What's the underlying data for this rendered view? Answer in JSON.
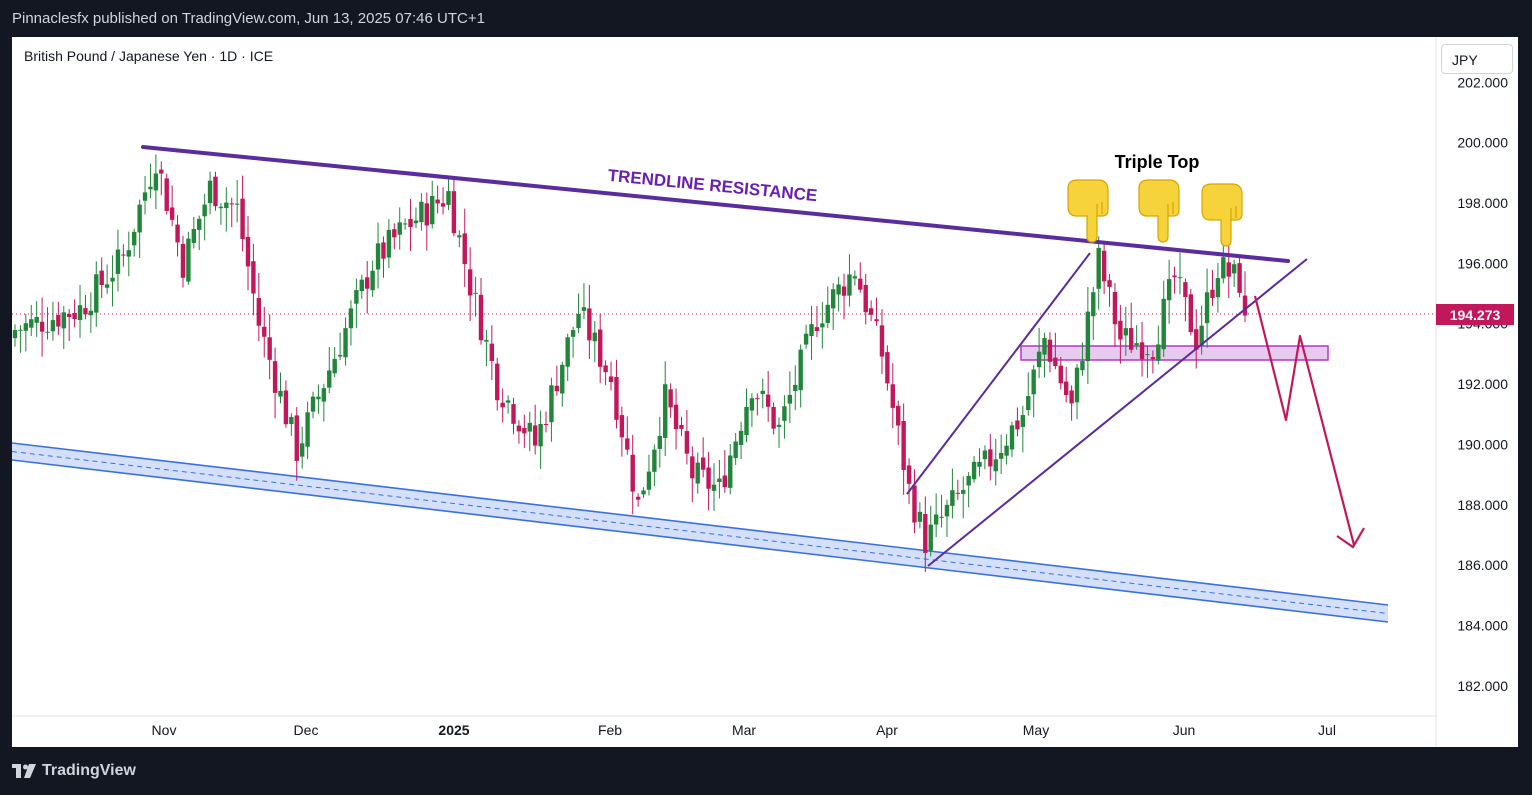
{
  "header": {
    "published": "Pinnaclesfx published on TradingView.com, Jun 13, 2025 07:46 UTC+1"
  },
  "symbol": "British Pound / Japanese Yen · 1D · ICE",
  "currency_button": "JPY",
  "footer": {
    "brand": "TradingView"
  },
  "colors": {
    "up": "#22863a",
    "down": "#c2185b",
    "trendline": "#5b2ba0",
    "channel": "#3a6fe8",
    "zone": "#b535c9",
    "arrow": "#c2185b",
    "price_tag": "#c2185b"
  },
  "chart_data": {
    "type": "candlestick",
    "title": "British Pound / Japanese Yen · 1D · ICE",
    "ylim": [
      181,
      203.5
    ],
    "y_ticks": [
      "182.000",
      "184.000",
      "186.000",
      "188.000",
      "190.000",
      "192.000",
      "194.000",
      "196.000",
      "198.000",
      "200.000",
      "202.000"
    ],
    "x_ticks": [
      "Nov",
      "Dec",
      "2025",
      "Feb",
      "Mar",
      "Apr",
      "May",
      "Jun",
      "Jul"
    ],
    "last_price": "194.273",
    "annotations": {
      "trendline_label": "TRENDLINE RESISTANCE",
      "pattern_label": "Triple Top",
      "pointer_icons": 3
    },
    "anchors": [
      {
        "d": 0,
        "p": 193.8
      },
      {
        "d": 12,
        "p": 194.5
      },
      {
        "d": 20,
        "p": 196.2
      },
      {
        "d": 26,
        "p": 199.5
      },
      {
        "d": 31,
        "p": 196.0
      },
      {
        "d": 36,
        "p": 198.5
      },
      {
        "d": 41,
        "p": 197.8
      },
      {
        "d": 45,
        "p": 194.0
      },
      {
        "d": 52,
        "p": 189.8
      },
      {
        "d": 58,
        "p": 192.5
      },
      {
        "d": 66,
        "p": 196.0
      },
      {
        "d": 72,
        "p": 197.2
      },
      {
        "d": 80,
        "p": 198.3
      },
      {
        "d": 84,
        "p": 195.3
      },
      {
        "d": 89,
        "p": 192.0
      },
      {
        "d": 96,
        "p": 190.0
      },
      {
        "d": 104,
        "p": 194.4
      },
      {
        "d": 110,
        "p": 192.2
      },
      {
        "d": 115,
        "p": 188.0
      },
      {
        "d": 120,
        "p": 191.5
      },
      {
        "d": 125,
        "p": 189.0
      },
      {
        "d": 130,
        "p": 188.5
      },
      {
        "d": 136,
        "p": 192.0
      },
      {
        "d": 141,
        "p": 190.5
      },
      {
        "d": 148,
        "p": 194.2
      },
      {
        "d": 155,
        "p": 195.8
      },
      {
        "d": 160,
        "p": 193.0
      },
      {
        "d": 165,
        "p": 188.5
      },
      {
        "d": 168,
        "p": 186.8
      },
      {
        "d": 175,
        "p": 188.5
      },
      {
        "d": 180,
        "p": 189.5
      },
      {
        "d": 186,
        "p": 191.0
      },
      {
        "d": 190,
        "p": 193.5
      },
      {
        "d": 195,
        "p": 191.2
      },
      {
        "d": 200,
        "p": 196.1
      },
      {
        "d": 204,
        "p": 193.5
      },
      {
        "d": 210,
        "p": 193.3
      },
      {
        "d": 214,
        "p": 195.5
      },
      {
        "d": 218,
        "p": 193.5
      },
      {
        "d": 222,
        "p": 195.9
      },
      {
        "d": 226,
        "p": 195.4
      },
      {
        "d": 227,
        "p": 194.3
      }
    ]
  }
}
